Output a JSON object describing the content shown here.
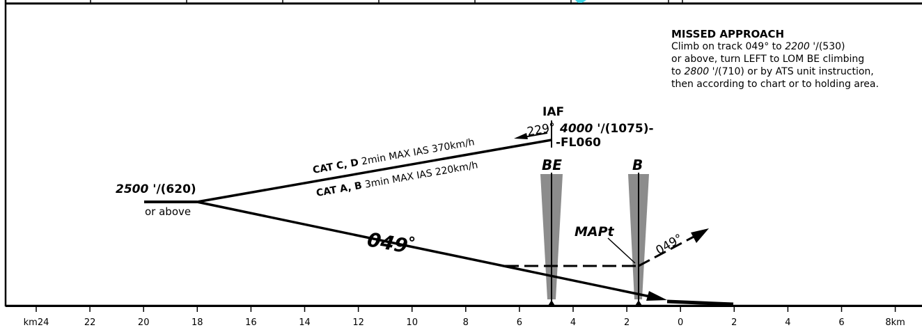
{
  "missed_approach": {
    "title": "MISSED APPROACH",
    "line1_pre": "Climb on track 049° to ",
    "line1_alt": "2200",
    "line1_post": " '/(530)",
    "line2": "or above, turn LEFT to LOM BE climbing",
    "line3_pre": "to ",
    "line3_alt": "2800",
    "line3_post": " '/(710) or by ATS unit instruction,",
    "line4": "then according to chart or to holding area."
  },
  "iaf": {
    "label": "IAF",
    "alt_ital": "4000",
    "alt_rest": " '/(1075)-",
    "fl": "-FL060",
    "outbound_track": "229°"
  },
  "procedure_turn": {
    "cat_cd_bold": "CAT C, D",
    "cat_cd_text": " 2min MAX IAS 370km/h",
    "cat_ab_bold": "CAT A, B",
    "cat_ab_text": " 3min MAX IAS 220km/h"
  },
  "intermediate": {
    "alt_ital": "2500",
    "alt_rest": " '/(620)",
    "or_above": "or above"
  },
  "final_track": "049",
  "final_track_deg": "°",
  "beacons": {
    "be": "BE",
    "b": "B"
  },
  "mapt": "MAPt",
  "missed_track": "049°",
  "distance_scale": {
    "labels": [
      "km24",
      "22",
      "20",
      "18",
      "16",
      "14",
      "12",
      "10",
      "8",
      "6",
      "4",
      "2",
      "0",
      "2",
      "4",
      "6",
      "8km"
    ]
  },
  "colors": {
    "ink": "#000000",
    "beacon_cone": "#8c8c8c",
    "accent": "#3fd6e6"
  }
}
